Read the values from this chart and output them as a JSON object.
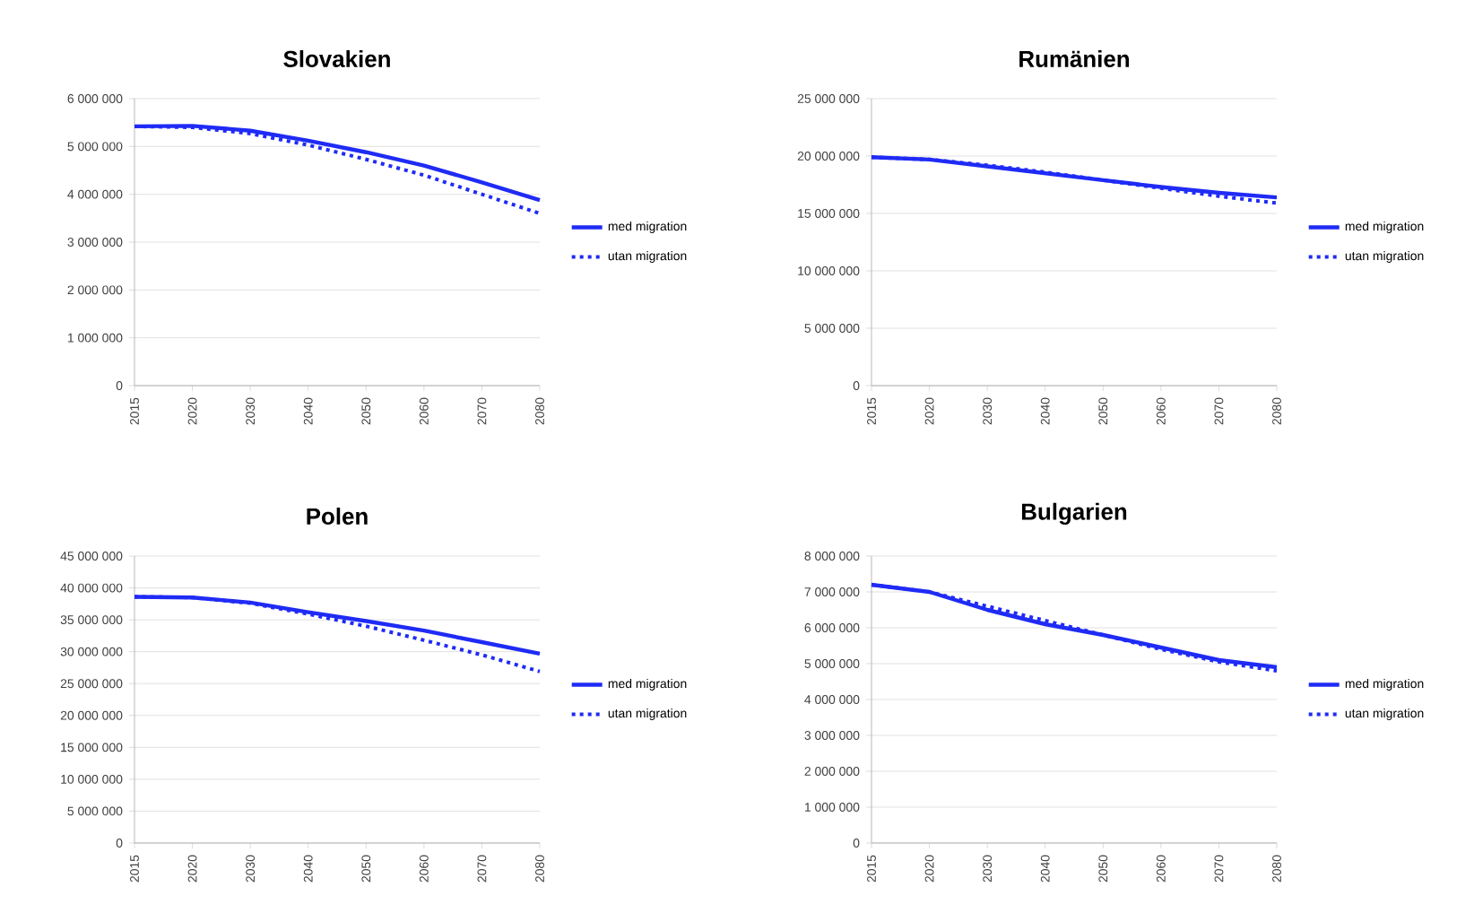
{
  "chart_data": [
    {
      "type": "line",
      "title": "Slovakien",
      "categories": [
        "2015",
        "2020",
        "2030",
        "2040",
        "2050",
        "2060",
        "2070",
        "2080"
      ],
      "series": [
        {
          "name": "med migration",
          "color": "#1f2bf5",
          "line_style": "solid",
          "values": [
            5420000,
            5430000,
            5330000,
            5120000,
            4880000,
            4600000,
            4250000,
            3880000
          ]
        },
        {
          "name": "utan migration",
          "color": "#1f2bf5",
          "line_style": "dotted",
          "values": [
            5420000,
            5400000,
            5270000,
            5030000,
            4730000,
            4400000,
            4000000,
            3600000
          ]
        }
      ],
      "ylim": [
        0,
        6000000
      ],
      "yticks": [
        {
          "value": 0,
          "label": "0"
        },
        {
          "value": 1000000,
          "label": "1 000 000"
        },
        {
          "value": 2000000,
          "label": "2 000 000"
        },
        {
          "value": 3000000,
          "label": "3 000 000"
        },
        {
          "value": 4000000,
          "label": "4 000 000"
        },
        {
          "value": 5000000,
          "label": "5 000 000"
        },
        {
          "value": 6000000,
          "label": "6 000 000"
        }
      ],
      "grid": "y",
      "legend": "right"
    },
    {
      "type": "line",
      "title": "Rumänien",
      "categories": [
        "2015",
        "2020",
        "2030",
        "2040",
        "2050",
        "2060",
        "2070",
        "2080"
      ],
      "series": [
        {
          "name": "med migration",
          "color": "#1f2bf5",
          "line_style": "solid",
          "values": [
            19900000,
            19700000,
            19100000,
            18500000,
            17900000,
            17300000,
            16800000,
            16400000
          ]
        },
        {
          "name": "utan migration",
          "color": "#1f2bf5",
          "line_style": "dotted",
          "values": [
            19900000,
            19700000,
            19200000,
            18600000,
            17900000,
            17200000,
            16500000,
            15900000
          ]
        }
      ],
      "ylim": [
        0,
        25000000
      ],
      "yticks": [
        {
          "value": 0,
          "label": "0"
        },
        {
          "value": 5000000,
          "label": "5 000 000"
        },
        {
          "value": 10000000,
          "label": "10 000 000"
        },
        {
          "value": 15000000,
          "label": "15 000 000"
        },
        {
          "value": 20000000,
          "label": "20 000 000"
        },
        {
          "value": 25000000,
          "label": "25 000 000"
        }
      ],
      "grid": "y",
      "legend": "right"
    },
    {
      "type": "line",
      "title": "Polen",
      "categories": [
        "2015",
        "2020",
        "2030",
        "2040",
        "2050",
        "2060",
        "2070",
        "2080"
      ],
      "series": [
        {
          "name": "med migration",
          "color": "#1f2bf5",
          "line_style": "solid",
          "values": [
            38600000,
            38500000,
            37700000,
            36200000,
            34800000,
            33300000,
            31500000,
            29700000
          ]
        },
        {
          "name": "utan migration",
          "color": "#1f2bf5",
          "line_style": "dotted",
          "values": [
            38600000,
            38500000,
            37600000,
            35900000,
            34000000,
            31800000,
            29500000,
            26900000
          ]
        }
      ],
      "ylim": [
        0,
        45000000
      ],
      "yticks": [
        {
          "value": 0,
          "label": "0"
        },
        {
          "value": 5000000,
          "label": "5 000 000"
        },
        {
          "value": 10000000,
          "label": "10 000 000"
        },
        {
          "value": 15000000,
          "label": "15 000 000"
        },
        {
          "value": 20000000,
          "label": "20 000 000"
        },
        {
          "value": 25000000,
          "label": "25 000 000"
        },
        {
          "value": 30000000,
          "label": "30 000 000"
        },
        {
          "value": 35000000,
          "label": "35 000 000"
        },
        {
          "value": 40000000,
          "label": "40 000 000"
        },
        {
          "value": 45000000,
          "label": "45 000 000"
        }
      ],
      "grid": "y",
      "legend": "right"
    },
    {
      "type": "line",
      "title": "Bulgarien",
      "categories": [
        "2015",
        "2020",
        "2030",
        "2040",
        "2050",
        "2060",
        "2070",
        "2080"
      ],
      "series": [
        {
          "name": "med migration",
          "color": "#1f2bf5",
          "line_style": "solid",
          "values": [
            7200000,
            7000000,
            6500000,
            6100000,
            5800000,
            5450000,
            5100000,
            4900000
          ]
        },
        {
          "name": "utan migration",
          "color": "#1f2bf5",
          "line_style": "dotted",
          "values": [
            7200000,
            7000000,
            6600000,
            6200000,
            5800000,
            5400000,
            5050000,
            4800000
          ]
        }
      ],
      "ylim": [
        0,
        8000000
      ],
      "yticks": [
        {
          "value": 0,
          "label": "0"
        },
        {
          "value": 1000000,
          "label": "1 000 000"
        },
        {
          "value": 2000000,
          "label": "2 000 000"
        },
        {
          "value": 3000000,
          "label": "3 000 000"
        },
        {
          "value": 4000000,
          "label": "4 000 000"
        },
        {
          "value": 5000000,
          "label": "5 000 000"
        },
        {
          "value": 6000000,
          "label": "6 000 000"
        },
        {
          "value": 7000000,
          "label": "7 000 000"
        },
        {
          "value": 8000000,
          "label": "8 000 000"
        }
      ],
      "grid": "y",
      "legend": "right"
    }
  ]
}
